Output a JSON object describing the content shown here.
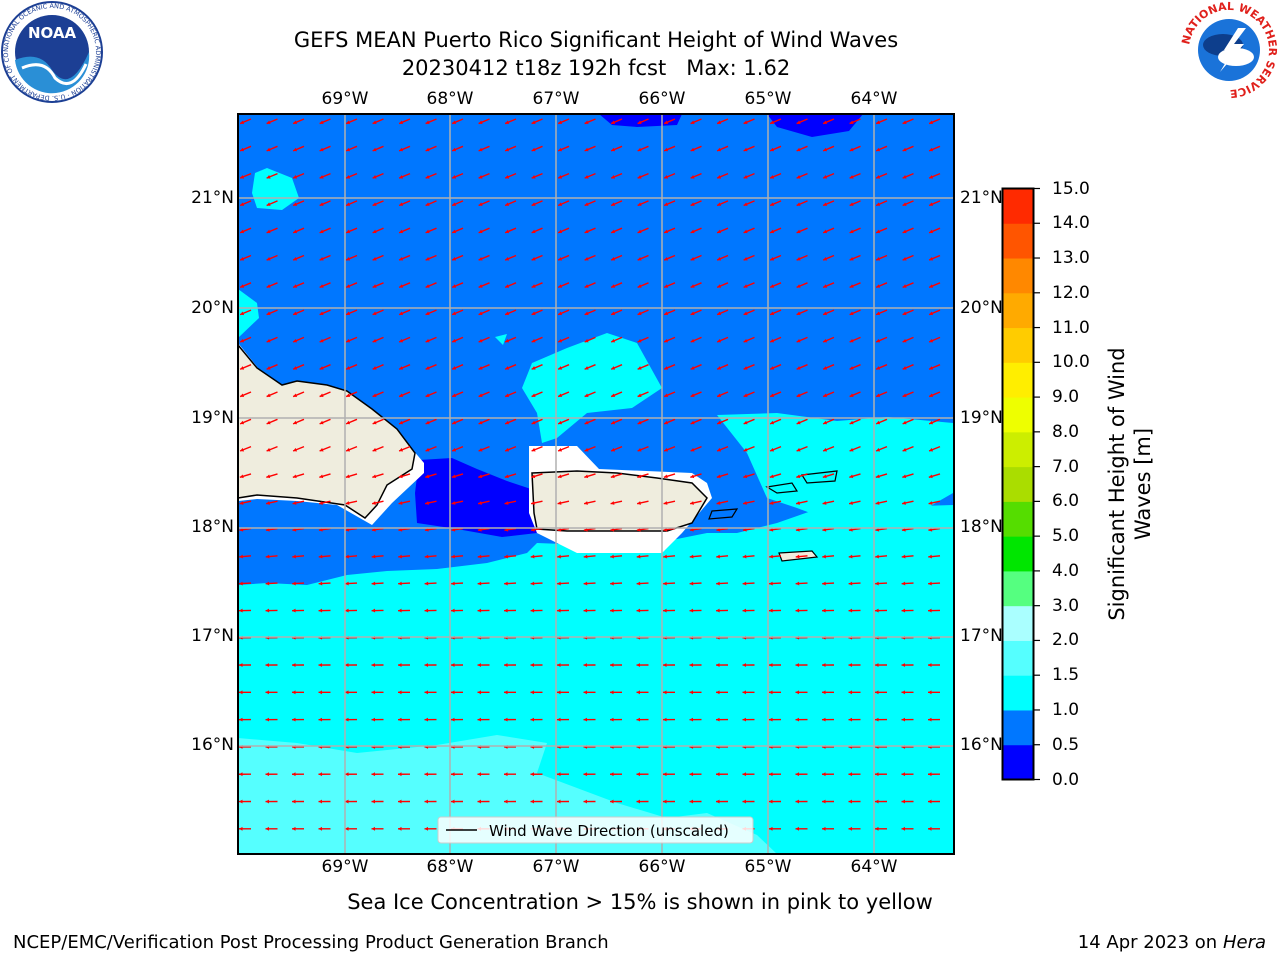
{
  "title": {
    "line1": "GEFS MEAN Puerto Rico Significant Height of Wind Waves",
    "line2_run": "20230412 t18z 192h fcst",
    "line2_max": "Max: 1.62"
  },
  "map": {
    "lon_labels": [
      "69°W",
      "68°W",
      "67°W",
      "66°W",
      "65°W",
      "64°W"
    ],
    "lat_labels": [
      "21°N",
      "20°N",
      "19°N",
      "18°N",
      "17°N",
      "16°N"
    ],
    "legend_label": "Wind Wave Direction (unscaled)",
    "arrow_color": "#ff0000",
    "land_color": "#efedde",
    "colors": {
      "dark_blue": "#0000ff",
      "mid_blue": "#0077ff",
      "cyan": "#00ffff",
      "light_cyan": "#55ffff"
    }
  },
  "colorbar": {
    "label": "Significant Height of Wind Waves [m]",
    "label_line1": "Significant Height of Wind",
    "label_line2": "Waves [m]",
    "ticks": [
      "15.0",
      "14.0",
      "13.0",
      "12.0",
      "11.0",
      "10.0",
      "9.0",
      "8.0",
      "7.0",
      "6.0",
      "5.0",
      "4.0",
      "3.0",
      "2.0",
      "1.5",
      "1.0",
      "0.5",
      "0.0"
    ],
    "colors_bottom_to_top": [
      "#0000ff",
      "#0077ff",
      "#00ffff",
      "#55ffff",
      "#aaffff",
      "#55ff80",
      "#00e600",
      "#55dd00",
      "#aadd00",
      "#ccee00",
      "#eeff00",
      "#ffee00",
      "#ffcc00",
      "#ffaa00",
      "#ff8800",
      "#ff5500",
      "#ff2a00"
    ]
  },
  "logos": {
    "noaa_text": "NOAA",
    "noaa_ring": "NATIONAL OCEANIC AND ATMOSPHERIC ADMINISTRATION · U.S. DEPARTMENT OF COMMERCE",
    "nws_ring": "NATIONAL WEATHER SERVICE"
  },
  "note": "Sea Ice Concentration > 15% is shown in pink to yellow",
  "footer": {
    "left": "NCEP/EMC/Verification Post Processing Product Generation Branch",
    "right_date": "14 Apr 2023 on ",
    "right_host": "Hera"
  }
}
